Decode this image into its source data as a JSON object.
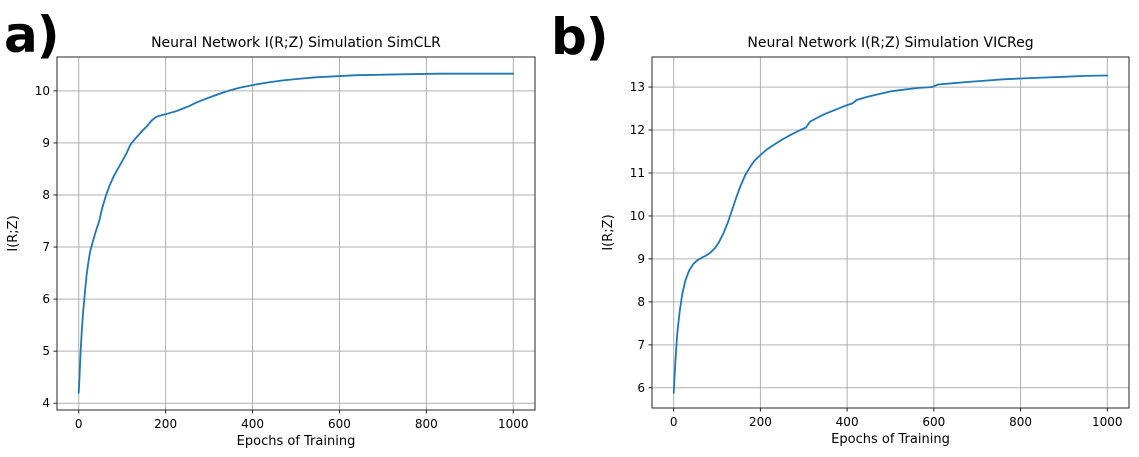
{
  "page": {
    "background": "#ffffff"
  },
  "panel_labels": [
    {
      "text": "a)"
    },
    {
      "text": "b)"
    }
  ],
  "colors": {
    "line": "#1f77b4",
    "grid": "#b0b0b0",
    "spine": "#262626",
    "text": "#000000",
    "background": "#ffffff"
  },
  "chart_data": [
    {
      "type": "line",
      "title": "Neural Network I(R;Z) Simulation SimCLR",
      "xlabel": "Epochs of Training",
      "ylabel": "I(R;Z)",
      "xlim": [
        -50,
        1050
      ],
      "ylim": [
        3.87,
        10.65
      ],
      "xticks": [
        0,
        200,
        400,
        600,
        800,
        1000
      ],
      "yticks": [
        4,
        5,
        6,
        7,
        8,
        9,
        10
      ],
      "grid": true,
      "legend": null,
      "line_color": "#1f77b4",
      "series": [
        {
          "name": "SimCLR I(R;Z)",
          "points": [
            [
              0,
              4.2
            ],
            [
              2,
              4.55
            ],
            [
              4,
              4.95
            ],
            [
              7,
              5.4
            ],
            [
              10,
              5.75
            ],
            [
              14,
              6.1
            ],
            [
              18,
              6.45
            ],
            [
              22,
              6.7
            ],
            [
              26,
              6.9
            ],
            [
              29,
              7.0
            ],
            [
              34,
              7.15
            ],
            [
              40,
              7.32
            ],
            [
              47,
              7.5
            ],
            [
              54,
              7.75
            ],
            [
              63,
              8.0
            ],
            [
              72,
              8.2
            ],
            [
              80,
              8.35
            ],
            [
              90,
              8.5
            ],
            [
              100,
              8.65
            ],
            [
              110,
              8.8
            ],
            [
              118,
              8.95
            ],
            [
              122,
              9.0
            ],
            [
              132,
              9.1
            ],
            [
              145,
              9.22
            ],
            [
              158,
              9.33
            ],
            [
              168,
              9.43
            ],
            [
              178,
              9.5
            ],
            [
              190,
              9.53
            ],
            [
              200,
              9.55
            ],
            [
              212,
              9.58
            ],
            [
              225,
              9.61
            ],
            [
              240,
              9.66
            ],
            [
              255,
              9.71
            ],
            [
              272,
              9.78
            ],
            [
              290,
              9.84
            ],
            [
              310,
              9.9
            ],
            [
              330,
              9.96
            ],
            [
              345,
              10.0
            ],
            [
              370,
              10.06
            ],
            [
              400,
              10.11
            ],
            [
              435,
              10.16
            ],
            [
              470,
              10.2
            ],
            [
              505,
              10.23
            ],
            [
              545,
              10.26
            ],
            [
              590,
              10.28
            ],
            [
              640,
              10.3
            ],
            [
              700,
              10.31
            ],
            [
              760,
              10.32
            ],
            [
              830,
              10.33
            ],
            [
              900,
              10.33
            ],
            [
              950,
              10.33
            ],
            [
              1000,
              10.33
            ]
          ]
        }
      ]
    },
    {
      "type": "line",
      "title": "Neural Network I(R;Z) Simulation VICReg",
      "xlabel": "Epochs of Training",
      "ylabel": "I(R;Z)",
      "xlim": [
        -50,
        1050
      ],
      "ylim": [
        5.53,
        13.7
      ],
      "xticks": [
        0,
        200,
        400,
        600,
        800,
        1000
      ],
      "yticks": [
        6,
        7,
        8,
        9,
        10,
        11,
        12,
        13
      ],
      "grid": true,
      "legend": null,
      "line_color": "#1f77b4",
      "series": [
        {
          "name": "VICReg I(R;Z)",
          "points": [
            [
              0,
              5.88
            ],
            [
              2,
              6.25
            ],
            [
              4,
              6.6
            ],
            [
              6,
              6.95
            ],
            [
              9,
              7.35
            ],
            [
              14,
              7.8
            ],
            [
              20,
              8.2
            ],
            [
              27,
              8.5
            ],
            [
              35,
              8.72
            ],
            [
              45,
              8.88
            ],
            [
              55,
              8.97
            ],
            [
              65,
              9.03
            ],
            [
              75,
              9.08
            ],
            [
              85,
              9.15
            ],
            [
              95,
              9.25
            ],
            [
              105,
              9.4
            ],
            [
              115,
              9.6
            ],
            [
              125,
              9.85
            ],
            [
              135,
              10.15
            ],
            [
              145,
              10.45
            ],
            [
              155,
              10.72
            ],
            [
              165,
              10.95
            ],
            [
              175,
              11.12
            ],
            [
              185,
              11.27
            ],
            [
              200,
              11.42
            ],
            [
              215,
              11.55
            ],
            [
              230,
              11.65
            ],
            [
              250,
              11.78
            ],
            [
              270,
              11.89
            ],
            [
              290,
              11.99
            ],
            [
              305,
              12.06
            ],
            [
              315,
              12.2
            ],
            [
              330,
              12.28
            ],
            [
              350,
              12.38
            ],
            [
              375,
              12.48
            ],
            [
              400,
              12.58
            ],
            [
              412,
              12.62
            ],
            [
              422,
              12.7
            ],
            [
              445,
              12.77
            ],
            [
              470,
              12.83
            ],
            [
              500,
              12.9
            ],
            [
              530,
              12.94
            ],
            [
              565,
              12.98
            ],
            [
              595,
              13.0
            ],
            [
              610,
              13.06
            ],
            [
              645,
              13.09
            ],
            [
              680,
              13.12
            ],
            [
              720,
              13.15
            ],
            [
              760,
              13.18
            ],
            [
              800,
              13.2
            ],
            [
              850,
              13.22
            ],
            [
              900,
              13.24
            ],
            [
              950,
              13.26
            ],
            [
              1000,
              13.27
            ]
          ]
        }
      ]
    }
  ]
}
